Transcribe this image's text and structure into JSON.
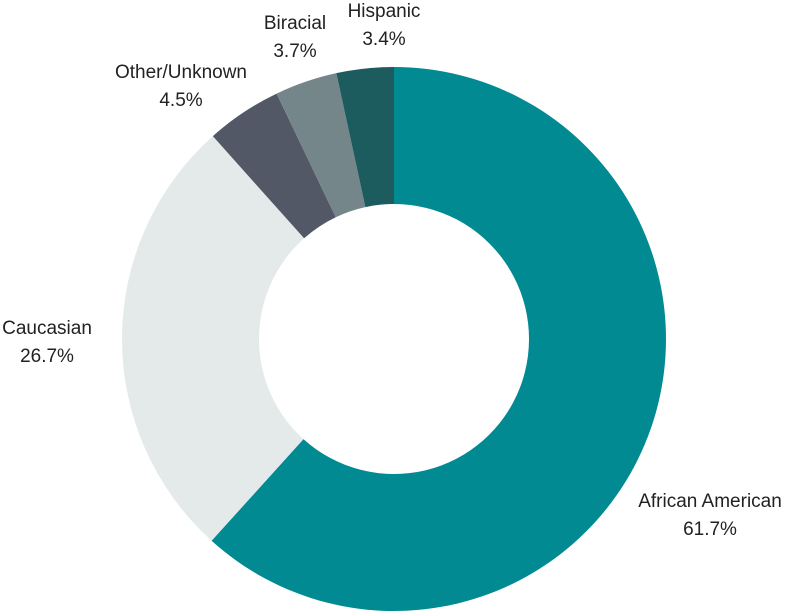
{
  "chart_data": {
    "type": "pie",
    "variant": "donut",
    "title": "",
    "start_angle_deg": 0,
    "direction": "clockwise",
    "slices": [
      {
        "label": "African American",
        "value": 61.7,
        "value_label": "61.7%",
        "color": "#028a93"
      },
      {
        "label": "Caucasian",
        "value": 26.7,
        "value_label": "26.7%",
        "color": "#e4eaea"
      },
      {
        "label": "Other/Unknown",
        "value": 4.5,
        "value_label": "4.5%",
        "color": "#525866"
      },
      {
        "label": "Biracial",
        "value": 3.7,
        "value_label": "3.7%",
        "color": "#75868a"
      },
      {
        "label": "Hispanic",
        "value": 3.4,
        "value_label": "3.4%",
        "color": "#1c5b5e"
      }
    ]
  }
}
